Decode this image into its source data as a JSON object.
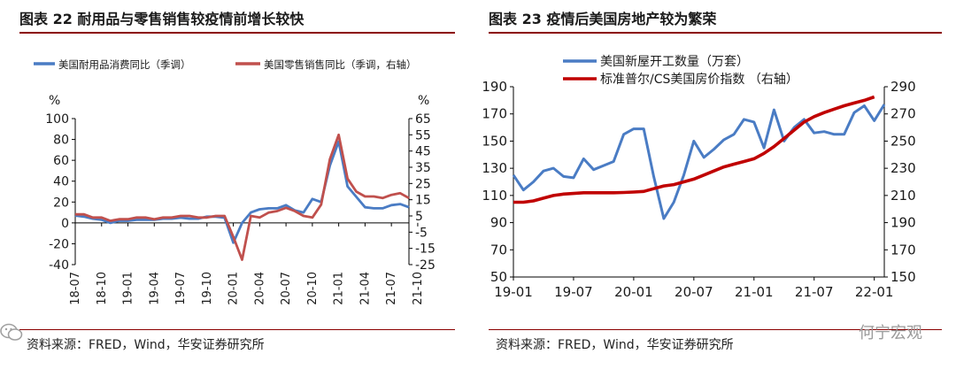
{
  "left": {
    "title": "图表 22  耐用品与零售销售较疫情前增长较快",
    "source": "资料来源：FRED，Wind，华安证券研究所",
    "chart_data": {
      "type": "line",
      "series": [
        {
          "name": "美国耐用品消费同比（季调）",
          "color": "#4a7cc4",
          "axis": "left",
          "values": [
            7,
            6,
            4,
            3,
            0,
            2,
            2,
            3,
            3,
            3,
            4,
            4,
            5,
            4,
            4,
            6,
            6,
            5,
            -19,
            0,
            10,
            13,
            14,
            14,
            17,
            12,
            10,
            23,
            20,
            55,
            78,
            35,
            25,
            15,
            14,
            14,
            17,
            18,
            15
          ]
        },
        {
          "name": "美国零售销售同比（季调，右轴）",
          "color": "#c0504d",
          "axis": "right",
          "values": [
            6,
            6,
            4,
            4,
            2,
            3,
            3,
            4,
            4,
            3,
            4,
            4,
            5,
            5,
            4,
            4,
            5,
            5,
            -8,
            -22,
            5,
            4,
            7,
            8,
            10,
            8,
            5,
            4,
            12,
            40,
            55,
            28,
            20,
            17,
            17,
            16,
            18,
            19,
            16
          ]
        }
      ],
      "x_tick_labels": [
        "18-07",
        "18-10",
        "19-01",
        "19-04",
        "19-07",
        "19-10",
        "20-01",
        "20-04",
        "20-07",
        "20-10",
        "21-01",
        "21-04",
        "21-07",
        "21-10"
      ],
      "y_left": {
        "unit": "%",
        "min": -40,
        "max": 100,
        "step": 20,
        "ticks": [
          "-40",
          "-20",
          "0",
          "20",
          "40",
          "60",
          "80",
          "100"
        ]
      },
      "y_right": {
        "unit": "%",
        "min": -25,
        "max": 65,
        "step": 10,
        "ticks": [
          "-25",
          "-15",
          "-5",
          "5",
          "15",
          "25",
          "35",
          "45",
          "55",
          "65"
        ]
      },
      "legend_position": "top"
    }
  },
  "right": {
    "title": "图表 23  疫情后美国房地产较为繁荣",
    "source": "资料来源：FRED，Wind，华安证券研究所",
    "chart_data": {
      "type": "line",
      "series": [
        {
          "name": "美国新屋开工数量（万套）",
          "color": "#4a7cc4",
          "axis": "left",
          "values": [
            125,
            114,
            120,
            128,
            130,
            124,
            123,
            137,
            129,
            132,
            135,
            155,
            159,
            159,
            124,
            93,
            105,
            125,
            150,
            138,
            144,
            151,
            155,
            166,
            164,
            145,
            173,
            150,
            160,
            166,
            156,
            157,
            155,
            155,
            171,
            176,
            165,
            177
          ]
        },
        {
          "name": "标准普尔/CS美国房价指数 （右轴）",
          "color": "#c00000",
          "axis": "right",
          "values": [
            205,
            205,
            206,
            208,
            210,
            211,
            211.5,
            212,
            212,
            212,
            212,
            212.2,
            212.5,
            213,
            215,
            217,
            218,
            220,
            222,
            225,
            228,
            231,
            233,
            235,
            237,
            241,
            246,
            252,
            258,
            264,
            268,
            271,
            273.5,
            276,
            278,
            280,
            282.5
          ]
        }
      ],
      "x_tick_labels": [
        "19-01",
        "19-07",
        "20-01",
        "20-07",
        "21-01",
        "21-07",
        "22-01"
      ],
      "y_left": {
        "min": 50,
        "max": 190,
        "step": 20,
        "ticks": [
          "50",
          "70",
          "90",
          "110",
          "130",
          "150",
          "170",
          "190"
        ]
      },
      "y_right": {
        "min": 150,
        "max": 290,
        "step": 20,
        "ticks": [
          "150",
          "170",
          "190",
          "210",
          "230",
          "250",
          "270",
          "290"
        ]
      },
      "legend_position": "top"
    }
  },
  "watermark": "何宁宏观"
}
